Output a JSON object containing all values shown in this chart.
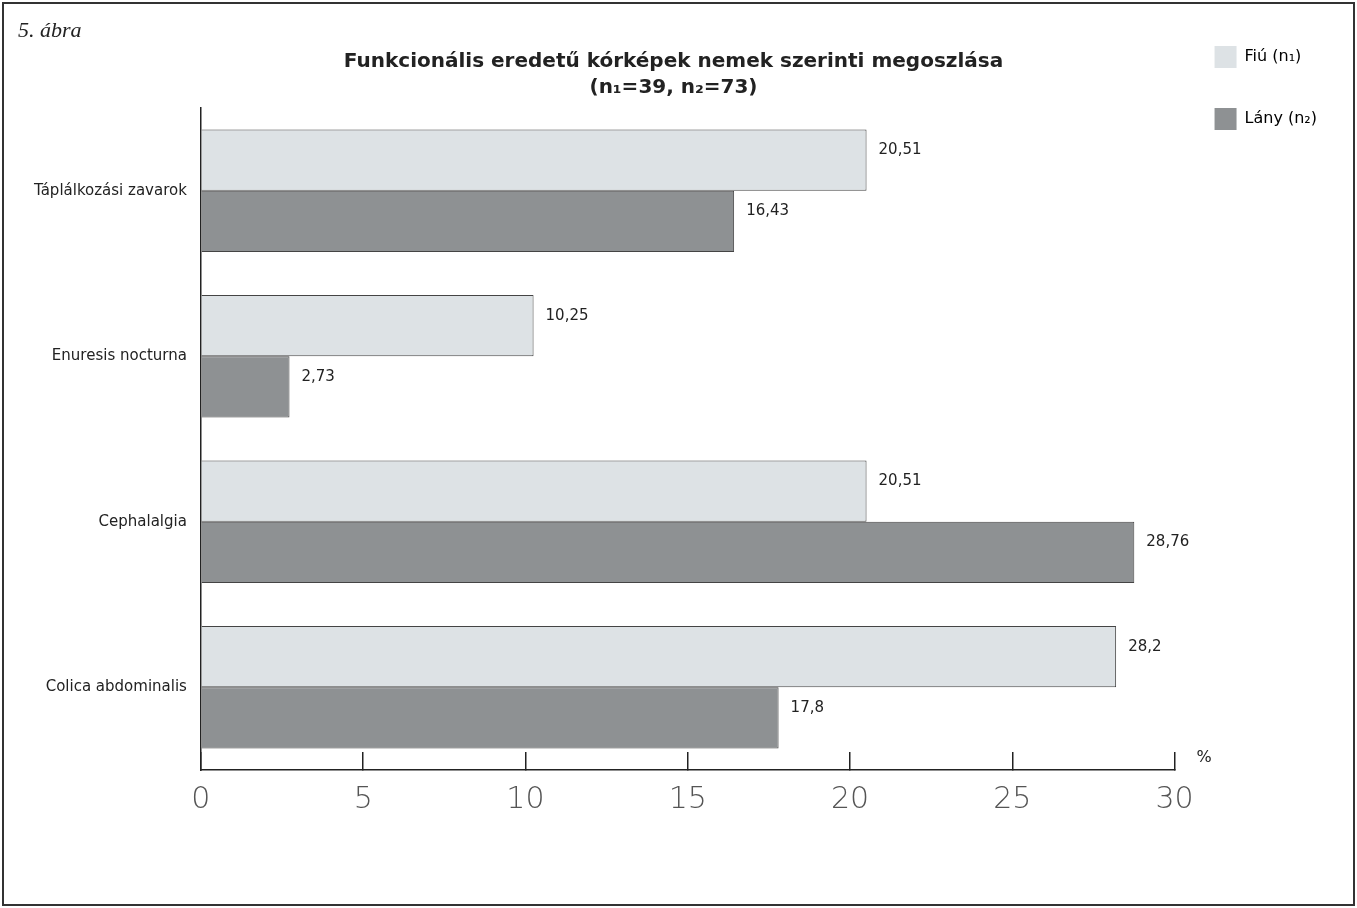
{
  "chart_data": {
    "type": "bar",
    "orientation": "horizontal",
    "title": "Funkcionális eredetű kórképek nemek szerinti megoszlása",
    "subtitle": "(n₁=39, n₂=73)",
    "xlabel": "%",
    "annotations": [
      "5. ábra"
    ],
    "categories": [
      "Táplálkozási zavarok",
      "Enuresis nocturna",
      "Cephalalgia",
      "Colica abdominalis"
    ],
    "series": [
      {
        "name": "Fiú (n₁)",
        "color": "#dde2e5",
        "values": [
          20.51,
          10.25,
          20.51,
          28.2
        ],
        "value_labels": [
          "20,51",
          "10,25",
          "20,51",
          "28,2"
        ]
      },
      {
        "name": "Lány (n₂)",
        "color": "#8e9193",
        "values": [
          16.43,
          2.73,
          28.76,
          17.8
        ],
        "value_labels": [
          "16,43",
          "2,73",
          "28,76",
          "17,8"
        ]
      }
    ],
    "xlim": [
      0,
      30
    ],
    "xticks": [
      0,
      5,
      10,
      15,
      20,
      25,
      30
    ],
    "grid": false,
    "legend": "top right"
  }
}
